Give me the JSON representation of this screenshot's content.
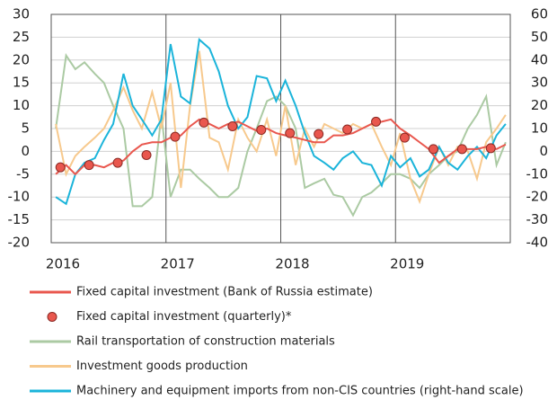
{
  "chart_data": {
    "type": "line",
    "x": [
      2016.04,
      2016.13,
      2016.21,
      2016.29,
      2016.38,
      2016.46,
      2016.54,
      2016.63,
      2016.71,
      2016.79,
      2016.88,
      2016.96,
      2017.04,
      2017.13,
      2017.21,
      2017.29,
      2017.38,
      2017.46,
      2017.54,
      2017.63,
      2017.71,
      2017.79,
      2017.88,
      2017.96,
      2018.04,
      2018.13,
      2018.21,
      2018.29,
      2018.38,
      2018.46,
      2018.54,
      2018.63,
      2018.71,
      2018.79,
      2018.88,
      2018.96,
      2019.04,
      2019.13,
      2019.21,
      2019.29,
      2019.38,
      2019.46,
      2019.54,
      2019.63,
      2019.71,
      2019.79,
      2019.88,
      2019.96
    ],
    "xlim": [
      2016,
      2020
    ],
    "xticks": [
      2016,
      2017,
      2018,
      2019
    ],
    "ylim": [
      -20,
      30
    ],
    "yticks": [
      -20,
      -15,
      -10,
      -5,
      0,
      5,
      10,
      15,
      20,
      25,
      30
    ],
    "y2lim": [
      -40,
      60
    ],
    "y2ticks": [
      -40,
      -30,
      -20,
      -10,
      0,
      10,
      20,
      30,
      40,
      50,
      60
    ],
    "grid": true,
    "series": [
      {
        "name": "Fixed capital investment (Bank of Russia estimate)",
        "color": "#e9574e",
        "values": [
          -5,
          -3,
          -5,
          -3,
          -3,
          -3.5,
          -2.5,
          -2,
          0,
          1.5,
          2,
          2,
          3,
          3.5,
          5.5,
          7,
          6,
          5,
          6,
          6.5,
          5.5,
          4.5,
          5,
          4,
          3.5,
          3,
          2.5,
          2,
          2,
          3.5,
          3.5,
          4,
          5,
          6,
          6.5,
          7,
          5,
          3.5,
          2,
          0.5,
          -2.5,
          -1,
          0.5,
          0.5,
          0.5,
          1,
          0.5,
          1.5
        ]
      },
      {
        "name": "Fixed capital investment (quarterly)*",
        "color": "#e9574e",
        "type": "scatter",
        "x": [
          2016.08,
          2016.33,
          2016.58,
          2016.83,
          2017.08,
          2017.33,
          2017.58,
          2017.83,
          2018.08,
          2018.33,
          2018.58,
          2018.83,
          2019.08,
          2019.33,
          2019.58,
          2019.83
        ],
        "values": [
          -3.5,
          -3,
          -2.5,
          -0.8,
          3.2,
          6.3,
          5.5,
          4.7,
          4,
          3.8,
          4.8,
          6.5,
          3,
          0.5,
          0.5,
          0.7
        ]
      },
      {
        "name": "Rail transportation of construction materials",
        "color": "#abcaa3",
        "values": [
          5,
          21,
          18,
          19.5,
          17,
          15,
          10,
          5,
          -12,
          -12,
          -10,
          8,
          -10,
          -4,
          -4,
          -6,
          -8,
          -10,
          -10,
          -8,
          0,
          5,
          11,
          12,
          10,
          5,
          -8,
          -7,
          -6,
          -9.5,
          -10,
          -14,
          -10,
          -9,
          -7,
          -5,
          -5,
          -6,
          -8,
          -5,
          -3,
          -1,
          0,
          5,
          8,
          12,
          -3,
          2
        ]
      },
      {
        "name": "Investment goods production",
        "color": "#f7c98d",
        "values": [
          6,
          -5,
          -1,
          1,
          3,
          5,
          9,
          14,
          9,
          5,
          13,
          5,
          15,
          -8,
          10,
          22,
          3,
          2,
          -4,
          7,
          3,
          0,
          7,
          -1,
          10,
          -3,
          5,
          1,
          6,
          5,
          4,
          6,
          5,
          6,
          1,
          -3,
          4,
          -6,
          -11,
          -5,
          1,
          -3,
          1,
          0,
          -6,
          2,
          5,
          8
        ]
      },
      {
        "name": "Machinery and equipment imports from non-CIS countries (right-hand scale)",
        "color": "#1bb4da",
        "axis": "y2",
        "values": [
          -20,
          -23,
          -10,
          -5,
          -3,
          5,
          12,
          34,
          20,
          14,
          7,
          14,
          47,
          24,
          21,
          49,
          45,
          35,
          20,
          10,
          15,
          33,
          32,
          22,
          31,
          20,
          8,
          -2,
          -5,
          -8,
          -3,
          0,
          -5,
          -6,
          -15,
          -2,
          -7,
          -3,
          -11,
          -8,
          2,
          -5,
          -8,
          -2,
          2,
          -3,
          7,
          12
        ]
      }
    ]
  }
}
